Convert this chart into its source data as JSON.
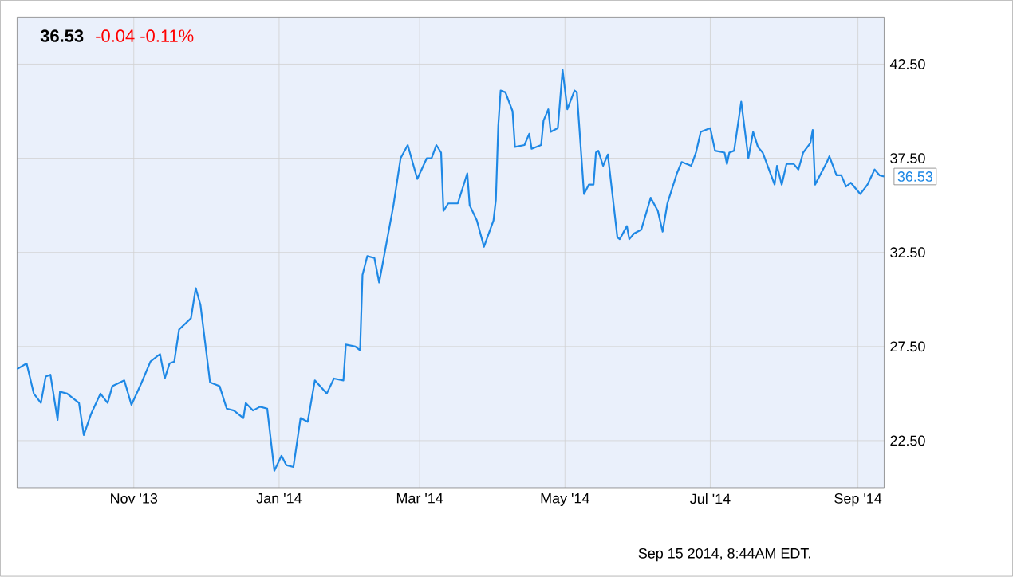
{
  "chart_data": {
    "type": "line",
    "title": "36.53",
    "subtitle": "-0.04  -0.11%",
    "x": [
      "2013-09-13",
      "2013-09-17",
      "2013-09-20",
      "2013-09-23",
      "2013-09-25",
      "2013-09-27",
      "2013-09-30",
      "2013-10-01",
      "2013-10-04",
      "2013-10-09",
      "2013-10-11",
      "2013-10-14",
      "2013-10-18",
      "2013-10-21",
      "2013-10-23",
      "2013-10-28",
      "2013-10-31",
      "2013-11-04",
      "2013-11-08",
      "2013-11-12",
      "2013-11-14",
      "2013-11-16",
      "2013-11-18",
      "2013-11-20",
      "2013-11-25",
      "2013-11-27",
      "2013-11-29",
      "2013-12-03",
      "2013-12-07",
      "2013-12-10",
      "2013-12-13",
      "2013-12-17",
      "2013-12-18",
      "2013-12-21",
      "2013-12-24",
      "2013-12-27",
      "2013-12-30",
      "2014-01-02",
      "2014-01-04",
      "2014-01-07",
      "2014-01-10",
      "2014-01-13",
      "2014-01-16",
      "2014-01-21",
      "2014-01-24",
      "2014-01-28",
      "2014-01-29",
      "2014-02-02",
      "2014-02-04",
      "2014-02-05",
      "2014-02-07",
      "2014-02-10",
      "2014-02-12",
      "2014-02-18",
      "2014-02-21",
      "2014-02-24",
      "2014-02-28",
      "2014-03-04",
      "2014-03-06",
      "2014-03-08",
      "2014-03-10",
      "2014-03-11",
      "2014-03-13",
      "2014-03-17",
      "2014-03-21",
      "2014-03-22",
      "2014-03-25",
      "2014-03-28",
      "2014-03-30",
      "2014-04-01",
      "2014-04-02",
      "2014-04-03",
      "2014-04-04",
      "2014-04-06",
      "2014-04-09",
      "2014-04-10",
      "2014-04-14",
      "2014-04-16",
      "2014-04-17",
      "2014-04-21",
      "2014-04-22",
      "2014-04-24",
      "2014-04-25",
      "2014-04-28",
      "2014-04-30",
      "2014-05-02",
      "2014-05-05",
      "2014-05-06",
      "2014-05-09",
      "2014-05-11",
      "2014-05-13",
      "2014-05-14",
      "2014-05-15",
      "2014-05-17",
      "2014-05-19",
      "2014-05-23",
      "2014-05-24",
      "2014-05-27",
      "2014-05-28",
      "2014-05-30",
      "2014-06-02",
      "2014-06-06",
      "2014-06-09",
      "2014-06-11",
      "2014-06-13",
      "2014-06-17",
      "2014-06-19",
      "2014-06-23",
      "2014-06-25",
      "2014-06-27",
      "2014-07-01",
      "2014-07-03",
      "2014-07-07",
      "2014-07-08",
      "2014-07-09",
      "2014-07-11",
      "2014-07-14",
      "2014-07-17",
      "2014-07-19",
      "2014-07-21",
      "2014-07-23",
      "2014-07-28",
      "2014-07-29",
      "2014-07-31",
      "2014-08-02",
      "2014-08-05",
      "2014-08-07",
      "2014-08-09",
      "2014-08-12",
      "2014-08-13",
      "2014-08-14",
      "2014-08-19",
      "2014-08-20",
      "2014-08-23",
      "2014-08-25",
      "2014-08-27",
      "2014-08-29",
      "2014-09-02",
      "2014-09-05",
      "2014-09-08",
      "2014-09-10",
      "2014-09-12"
    ],
    "series": [
      {
        "color": "#1e88e5",
        "values": [
          26.3,
          26.6,
          25.0,
          24.5,
          25.9,
          26.0,
          23.6,
          25.1,
          25.0,
          24.5,
          22.8,
          23.9,
          25.0,
          24.5,
          25.4,
          25.7,
          24.4,
          25.5,
          26.7,
          27.1,
          25.8,
          26.6,
          26.7,
          28.4,
          29.0,
          30.6,
          29.7,
          25.6,
          25.4,
          24.2,
          24.1,
          23.7,
          24.5,
          24.1,
          24.3,
          24.2,
          20.9,
          21.7,
          21.2,
          21.1,
          23.7,
          23.5,
          25.7,
          25.0,
          25.8,
          25.7,
          27.6,
          27.5,
          27.3,
          31.3,
          32.3,
          32.2,
          30.9,
          35.0,
          37.5,
          38.2,
          36.4,
          37.5,
          37.5,
          38.2,
          37.8,
          34.7,
          35.1,
          35.1,
          36.7,
          35.0,
          34.2,
          32.8,
          33.5,
          34.2,
          35.3,
          39.2,
          41.1,
          41.0,
          40.0,
          38.1,
          38.2,
          38.8,
          38.0,
          38.2,
          39.5,
          40.1,
          38.9,
          39.1,
          42.2,
          40.1,
          41.1,
          41.0,
          35.6,
          36.1,
          36.1,
          37.8,
          37.9,
          37.1,
          37.7,
          33.3,
          33.2,
          33.9,
          33.2,
          33.5,
          33.7,
          35.4,
          34.7,
          33.6,
          35.1,
          36.7,
          37.3,
          37.1,
          37.8,
          38.9,
          39.1,
          37.9,
          37.8,
          37.2,
          37.8,
          37.9,
          40.5,
          37.5,
          38.9,
          38.1,
          37.8,
          36.1,
          37.1,
          36.1,
          37.2,
          37.2,
          36.9,
          37.8,
          38.3,
          39.0,
          36.1,
          37.3,
          37.6,
          36.6,
          36.6,
          36.0,
          36.2,
          35.6,
          36.1,
          36.9,
          36.6,
          36.53
        ]
      }
    ],
    "xlim": [
      "2013-09-13",
      "2014-09-12"
    ],
    "xticks": [
      {
        "value": "2013-11-01",
        "label": "Nov '13"
      },
      {
        "value": "2014-01-01",
        "label": "Jan '14"
      },
      {
        "value": "2014-03-01",
        "label": "Mar '14"
      },
      {
        "value": "2014-05-01",
        "label": "May '14"
      },
      {
        "value": "2014-07-01",
        "label": "Jul '14"
      },
      {
        "value": "2014-09-01",
        "label": "Sep '14"
      }
    ],
    "ylim": [
      20,
      45
    ],
    "yticks": [
      {
        "value": 22.5,
        "label": "22.50"
      },
      {
        "value": 27.5,
        "label": "27.50"
      },
      {
        "value": 32.5,
        "label": "32.50"
      },
      {
        "value": 37.5,
        "label": "37.50"
      },
      {
        "value": 42.5,
        "label": "42.50"
      }
    ],
    "grid": true,
    "annotations": [
      {
        "text": "36.53",
        "x": "2014-09-12",
        "y": 36.53
      },
      "Sep 15 2014, 8:44AM EDT."
    ]
  }
}
